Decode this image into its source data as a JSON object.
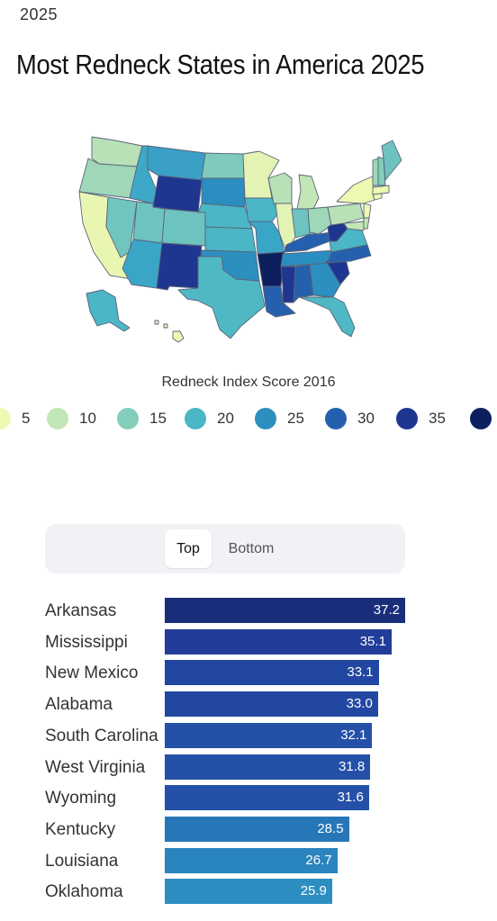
{
  "header": {
    "year_tag": "2025",
    "title": "Most Redneck States in America 2025"
  },
  "legend": {
    "title": "Redneck Index Score 2016",
    "items": [
      {
        "label": "5",
        "color": "#edf8b1"
      },
      {
        "label": "10",
        "color": "#c2e6b5"
      },
      {
        "label": "15",
        "color": "#83cdbb"
      },
      {
        "label": "20",
        "color": "#4ab6c6"
      },
      {
        "label": "25",
        "color": "#2c8fc0"
      },
      {
        "label": "30",
        "color": "#2460ad"
      },
      {
        "label": "35",
        "color": "#1f3690"
      },
      {
        "label": "",
        "color": "#0d1f5e"
      }
    ]
  },
  "toggle": {
    "top_label": "Top",
    "bottom_label": "Bottom",
    "selected": "Top"
  },
  "chart_data": {
    "type": "bar",
    "orientation": "horizontal",
    "categories": [
      "Arkansas",
      "Mississippi",
      "New Mexico",
      "Alabama",
      "South Carolina",
      "West Virginia",
      "Wyoming",
      "Kentucky",
      "Louisiana",
      "Oklahoma"
    ],
    "values": [
      37.2,
      35.1,
      33.1,
      33.0,
      32.1,
      31.8,
      31.6,
      28.5,
      26.7,
      25.9
    ],
    "value_labels": [
      "37.2",
      "35.1",
      "33.1",
      "33.0",
      "32.1",
      "31.8",
      "31.6",
      "28.5",
      "26.7",
      "25.9"
    ],
    "colors": [
      "#1a2d7a",
      "#213d99",
      "#2247a2",
      "#2247a2",
      "#2450a8",
      "#2450a8",
      "#2450a8",
      "#2676b8",
      "#2a84bd",
      "#2d8ec1"
    ],
    "xlim": [
      0,
      37.2
    ]
  },
  "map": {
    "type": "choropleth",
    "metric": "Redneck Index Score 2016",
    "region": "United States",
    "state_colors": {
      "WA": "#b8e1b7",
      "OR": "#9fd7b8",
      "CA": "#e8f6b2",
      "NV": "#71c5bf",
      "ID": "#3ea8c8",
      "MT": "#3aa0c6",
      "WY": "#1f3690",
      "UT": "#6cc3c0",
      "AZ": "#3aa6c7",
      "CO": "#6cc3c0",
      "NM": "#1f3690",
      "ND": "#7fcabd",
      "SD": "#2a8ec0",
      "NE": "#4ab6c6",
      "KS": "#4ab6c6",
      "OK": "#2c8fc0",
      "TX": "#4fb8c5",
      "MN": "#e2f3b3",
      "IA": "#4ab6c6",
      "MO": "#3aa6c7",
      "AR": "#0d1f5e",
      "LA": "#2460ad",
      "WI": "#b8e1b7",
      "IL": "#e2f3b3",
      "MI": "#c2e6b5",
      "IN": "#6cc3c0",
      "OH": "#9fd7b8",
      "KY": "#2460ad",
      "TN": "#2a8ec0",
      "MS": "#1f3690",
      "AL": "#2460ad",
      "GA": "#2c8fc0",
      "FL": "#4fb8c5",
      "SC": "#1f3690",
      "NC": "#2460ad",
      "VA": "#4ab6c6",
      "WV": "#1f3690",
      "PA": "#b8e1b7",
      "NY": "#edf8b1",
      "VT": "#9fd7b8",
      "NH": "#83cdbb",
      "ME": "#6cc3c0",
      "MA": "#edf8b1",
      "CT": "#edf8b1",
      "NJ": "#edf8b1",
      "DE": "#c2e6b5",
      "MD": "#c2e6b5",
      "AK": "#4ab6c6",
      "HI": "#edf8b1"
    }
  }
}
